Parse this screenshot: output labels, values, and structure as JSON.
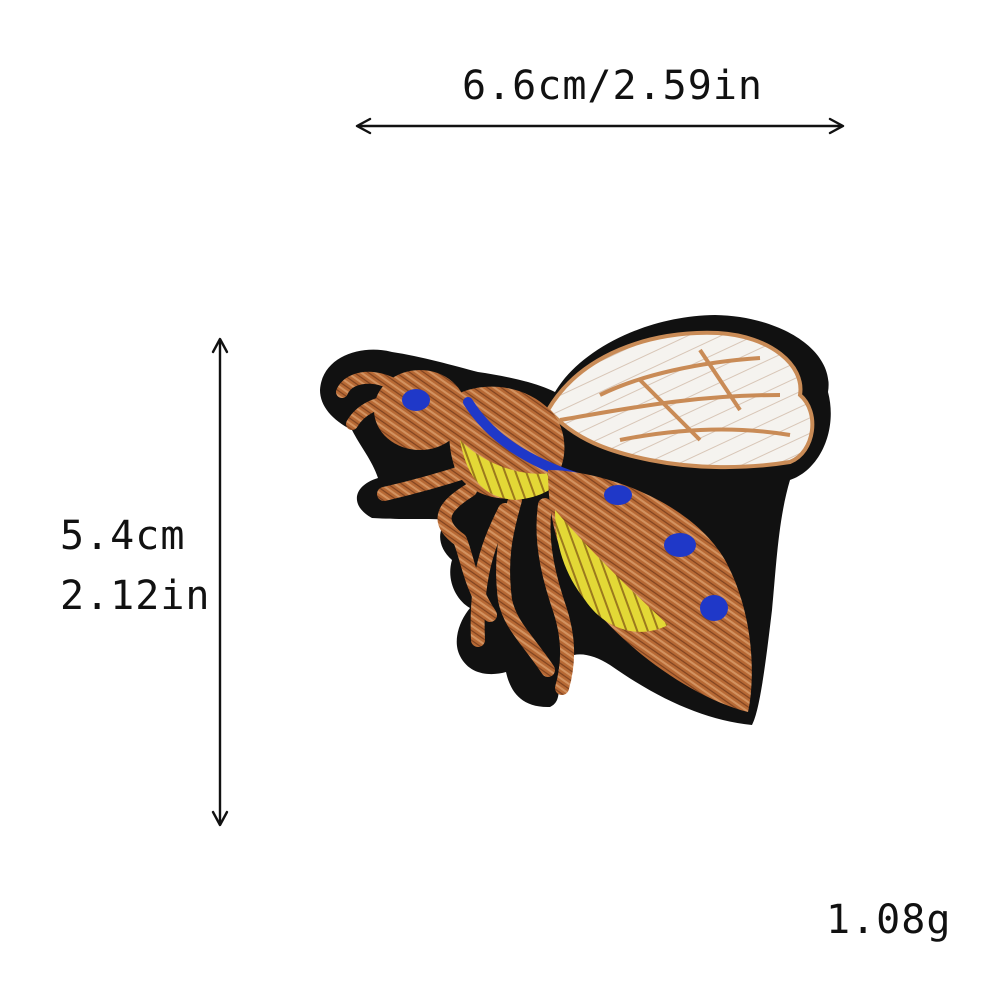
{
  "dimensions": {
    "width_label": "6.6cm/2.59in",
    "height_cm_label": "5.4cm",
    "height_in_label": "2.12in",
    "weight_label": "1.08g"
  },
  "product": {
    "subject": "embroidered bee patch",
    "colors": {
      "border": "#111111",
      "metallic_copper": "#b86a35",
      "copper_light": "#d39361",
      "yellow": "#e9df3d",
      "blue": "#1f38c8",
      "wing_white": "#f5f3ef"
    }
  },
  "icons": {
    "horizontal_arrow": "double-arrow-horizontal-icon",
    "vertical_arrow": "double-arrow-vertical-icon"
  }
}
